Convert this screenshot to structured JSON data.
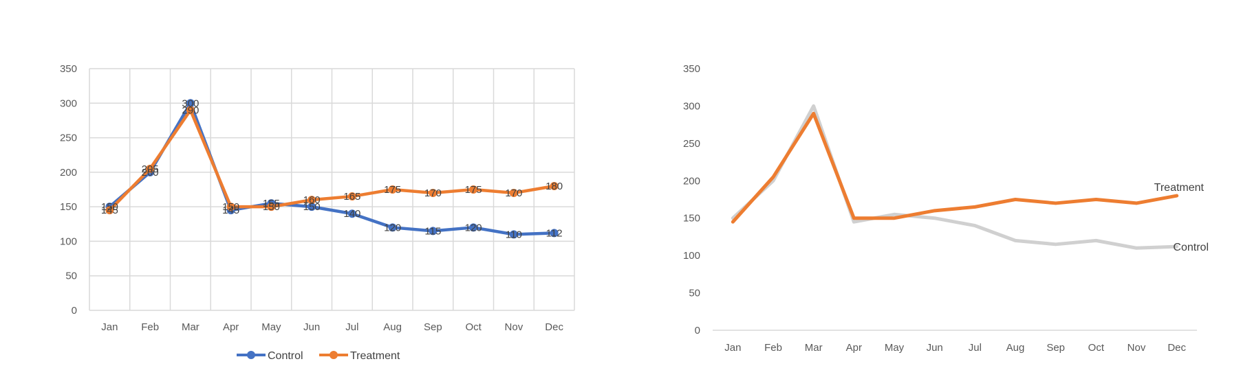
{
  "chart_data": [
    {
      "type": "line",
      "title": "",
      "xlabel": "",
      "ylabel": "",
      "categories": [
        "Jan",
        "Feb",
        "Mar",
        "Apr",
        "May",
        "Jun",
        "Jul",
        "Aug",
        "Sep",
        "Oct",
        "Nov",
        "Dec"
      ],
      "ylim": [
        0,
        350
      ],
      "yticks": [
        0,
        50,
        100,
        150,
        200,
        250,
        300,
        350
      ],
      "grid": "both",
      "legend": "bottom",
      "data_labels": true,
      "series": [
        {
          "name": "Control",
          "color": "#4472C4",
          "marker": "circle",
          "values": [
            150,
            200,
            300,
            145,
            155,
            150,
            140,
            120,
            115,
            120,
            110,
            112
          ]
        },
        {
          "name": "Treatment",
          "color": "#ED7D31",
          "marker": "circle",
          "values": [
            145,
            205,
            290,
            150,
            150,
            160,
            165,
            175,
            170,
            175,
            170,
            180
          ]
        }
      ]
    },
    {
      "type": "line",
      "title": "",
      "xlabel": "",
      "ylabel": "",
      "categories": [
        "Jan",
        "Feb",
        "Mar",
        "Apr",
        "May",
        "Jun",
        "Jul",
        "Aug",
        "Sep",
        "Oct",
        "Nov",
        "Dec"
      ],
      "ylim": [
        0,
        350
      ],
      "yticks": [
        0,
        50,
        100,
        150,
        200,
        250,
        300,
        350
      ],
      "grid": "none",
      "legend": "direct labels at line ends",
      "series": [
        {
          "name": "Control",
          "color": "#D0D0D0",
          "label_color": "#404040",
          "values": [
            150,
            200,
            300,
            145,
            155,
            150,
            140,
            120,
            115,
            120,
            110,
            112
          ]
        },
        {
          "name": "Treatment",
          "color": "#ED7D31",
          "label_color": "#ED7D31",
          "values": [
            145,
            205,
            290,
            150,
            150,
            160,
            165,
            175,
            170,
            175,
            170,
            180
          ]
        }
      ]
    }
  ]
}
